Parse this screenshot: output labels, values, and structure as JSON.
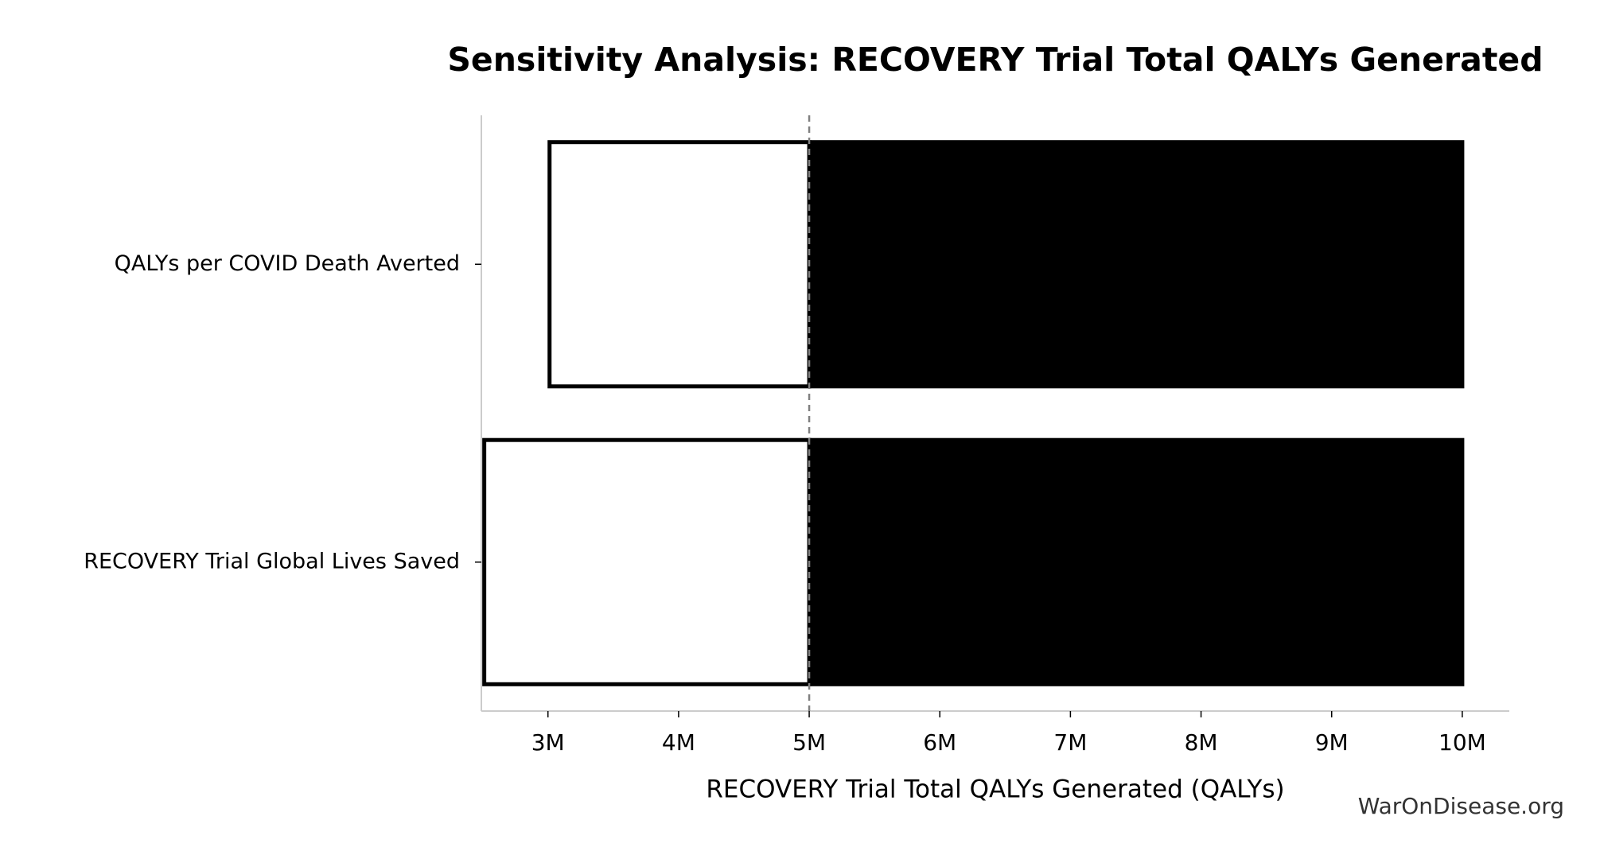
{
  "chart_data": {
    "type": "tornado",
    "title": "Sensitivity Analysis: RECOVERY Trial Total QALYs Generated",
    "xlabel": "RECOVERY Trial Total QALYs Generated (QALYs)",
    "watermark": "WarOnDisease.org",
    "categories": [
      "QALYs per COVID Death Averted",
      "RECOVERY Trial Global Lives Saved"
    ],
    "baseline": 5000000,
    "series": [
      {
        "color": "#ffffff",
        "values": [
          3000000,
          2500000
        ]
      },
      {
        "color": "#000000",
        "values": [
          10000000,
          10000000
        ]
      }
    ],
    "xlim": [
      2490000,
      10360000
    ],
    "xticks": [
      {
        "value": 3000000,
        "label": "3M"
      },
      {
        "value": 4000000,
        "label": "4M"
      },
      {
        "value": 5000000,
        "label": "5M"
      },
      {
        "value": 6000000,
        "label": "6M"
      },
      {
        "value": 7000000,
        "label": "7M"
      },
      {
        "value": 8000000,
        "label": "8M"
      },
      {
        "value": 9000000,
        "label": "9M"
      },
      {
        "value": 10000000,
        "label": "10M"
      }
    ]
  }
}
